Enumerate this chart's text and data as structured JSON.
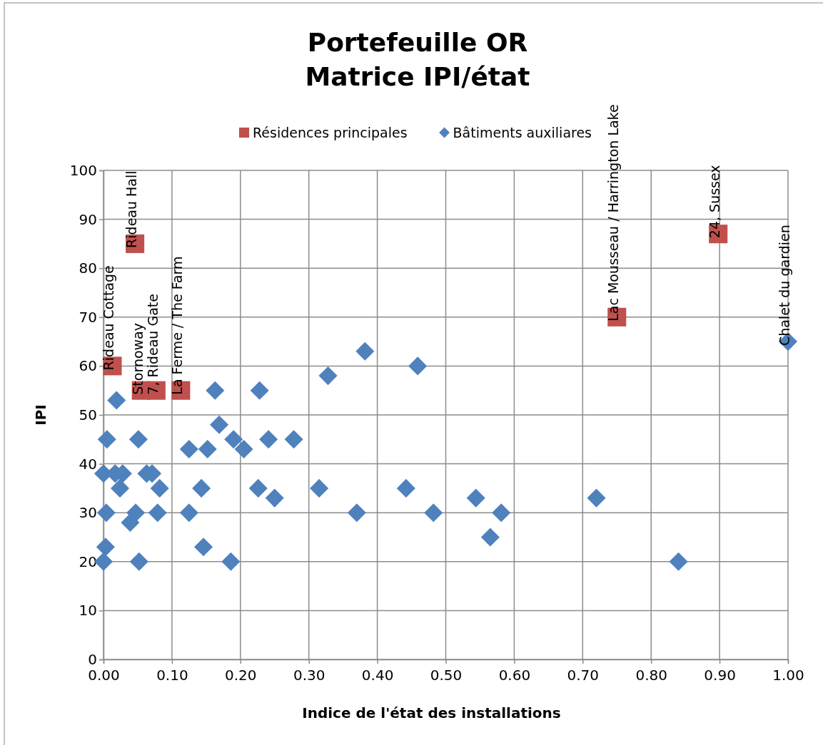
{
  "chart_data": {
    "type": "scatter",
    "title": "Portefeuille OR\nMatrice IPI/état",
    "xlabel": "Indice de l'état des installations",
    "ylabel": "IPI",
    "xlim": [
      0,
      1
    ],
    "xticks": [
      {
        "value": 0,
        "label": "0.00"
      },
      {
        "value": 0.1,
        "label": "0.10"
      },
      {
        "value": 0.2,
        "label": "0.20"
      },
      {
        "value": 0.3,
        "label": "0.30"
      },
      {
        "value": 0.4,
        "label": "0.40"
      },
      {
        "value": 0.5,
        "label": "0.50"
      },
      {
        "value": 0.6,
        "label": "0.60"
      },
      {
        "value": 0.7,
        "label": "0.70"
      },
      {
        "value": 0.8,
        "label": "0.80"
      },
      {
        "value": 0.9,
        "label": "0.90"
      },
      {
        "value": 1,
        "label": "1.00"
      }
    ],
    "ylim": [
      0,
      100
    ],
    "yticks": [
      0,
      10,
      20,
      30,
      40,
      50,
      60,
      70,
      80,
      90,
      100
    ],
    "grid": true,
    "legend": "top",
    "series": [
      {
        "name": "Résidences principales",
        "color": "#c0504d",
        "marker": "square",
        "x": [
          0.046,
          0.013,
          0.055,
          0.077,
          0.113,
          0.75,
          0.898
        ],
        "values": [
          85,
          60,
          55,
          55,
          55,
          70,
          87
        ]
      },
      {
        "name": "Bâtiments auxiliares",
        "color": "#4f81bd",
        "marker": "diamond",
        "x": [
          0.019,
          0.005,
          0.051,
          0,
          0.017,
          0.028,
          0.024,
          0.063,
          0.071,
          0.082,
          0.004,
          0.047,
          0.039,
          0.079,
          0.125,
          0.003,
          0,
          0.052,
          0.146,
          0.186,
          0.143,
          0.125,
          0.152,
          0.169,
          0.19,
          0.205,
          0.241,
          0.278,
          0.226,
          0.25,
          0.163,
          0.228,
          0.382,
          0.459,
          0.328,
          0.315,
          0.37,
          0.442,
          0.482,
          0.544,
          0.581,
          0.565,
          0.72,
          0.84,
          1
        ],
        "values": [
          53,
          45,
          45,
          38,
          38,
          38,
          35,
          38,
          38,
          35,
          30,
          30,
          28,
          30,
          30,
          23,
          20,
          20,
          23,
          20,
          35,
          43,
          43,
          48,
          45,
          43,
          45,
          45,
          35,
          33,
          55,
          55,
          63,
          60,
          58,
          35,
          30,
          35,
          30,
          33,
          30,
          25,
          33,
          20,
          65
        ]
      }
    ],
    "annotations": [
      {
        "text": "Rideau Hall",
        "x": 0.046,
        "y": 85
      },
      {
        "text": "Rideau Cottage",
        "x": 0.013,
        "y": 60
      },
      {
        "text": "Stornoway",
        "x": 0.055,
        "y": 55
      },
      {
        "text": "7, Rideau Gate",
        "x": 0.077,
        "y": 55
      },
      {
        "text": "La Ferme / The Farm",
        "x": 0.113,
        "y": 55
      },
      {
        "text": "Lac Mousseau / Harrington Lake",
        "x": 0.75,
        "y": 70
      },
      {
        "text": "24, Sussex",
        "x": 0.898,
        "y": 87
      },
      {
        "text": "Chalet du gardien",
        "x": 1,
        "y": 65
      }
    ]
  }
}
